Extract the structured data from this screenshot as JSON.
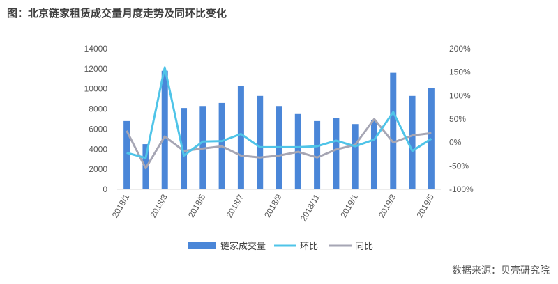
{
  "title": "图：北京链家租赁成交量月度走势及同环比变化",
  "source": "数据来源：贝壳研究院",
  "colors": {
    "bars": "#4a86d8",
    "mom": "#4fc4e8",
    "yoy": "#a6a6b4",
    "tick_text": "#595959"
  },
  "chart_data": {
    "type": "bar",
    "title": "",
    "categories": [
      "2018/1",
      "2018/2",
      "2018/3",
      "2018/4",
      "2018/5",
      "2018/6",
      "2018/7",
      "2018/8",
      "2018/9",
      "2018/10",
      "2018/11",
      "2018/12",
      "2019/1",
      "2019/2",
      "2019/3",
      "2019/4",
      "2019/5"
    ],
    "x_tick_labels": [
      "2018/1",
      "",
      "2018/3",
      "",
      "2018/5",
      "",
      "2018/7",
      "",
      "2018/9",
      "",
      "2018/11",
      "",
      "2019/1",
      "",
      "2019/3",
      "",
      "2019/5"
    ],
    "y_left": {
      "ylim": [
        0,
        14000
      ],
      "ticks": [
        "0",
        "2000",
        "4000",
        "6000",
        "8000",
        "10000",
        "12000",
        "14000"
      ]
    },
    "y_right": {
      "ylim": [
        -100,
        200
      ],
      "ticks": [
        "-100%",
        "-50%",
        "0%",
        "50%",
        "100%",
        "150%",
        "200%"
      ]
    },
    "grid": false,
    "legend_position": "bottom",
    "series": [
      {
        "name": "链家成交量",
        "type": "bar",
        "axis": "left",
        "values": [
          6800,
          4500,
          11800,
          8100,
          8300,
          8600,
          10300,
          9300,
          8300,
          7500,
          6800,
          7100,
          6500,
          6900,
          11600,
          9300,
          10100
        ]
      },
      {
        "name": "环比",
        "type": "line",
        "axis": "right",
        "values": [
          -22,
          -33,
          160,
          -28,
          2,
          3,
          18,
          -10,
          -10,
          -10,
          -8,
          4,
          -8,
          6,
          65,
          -18,
          8
        ]
      },
      {
        "name": "同比",
        "type": "line",
        "axis": "right",
        "values": [
          25,
          -55,
          13,
          -18,
          -13,
          -8,
          -28,
          -32,
          -28,
          -20,
          -32,
          -15,
          -5,
          50,
          0,
          15,
          20
        ]
      }
    ]
  }
}
